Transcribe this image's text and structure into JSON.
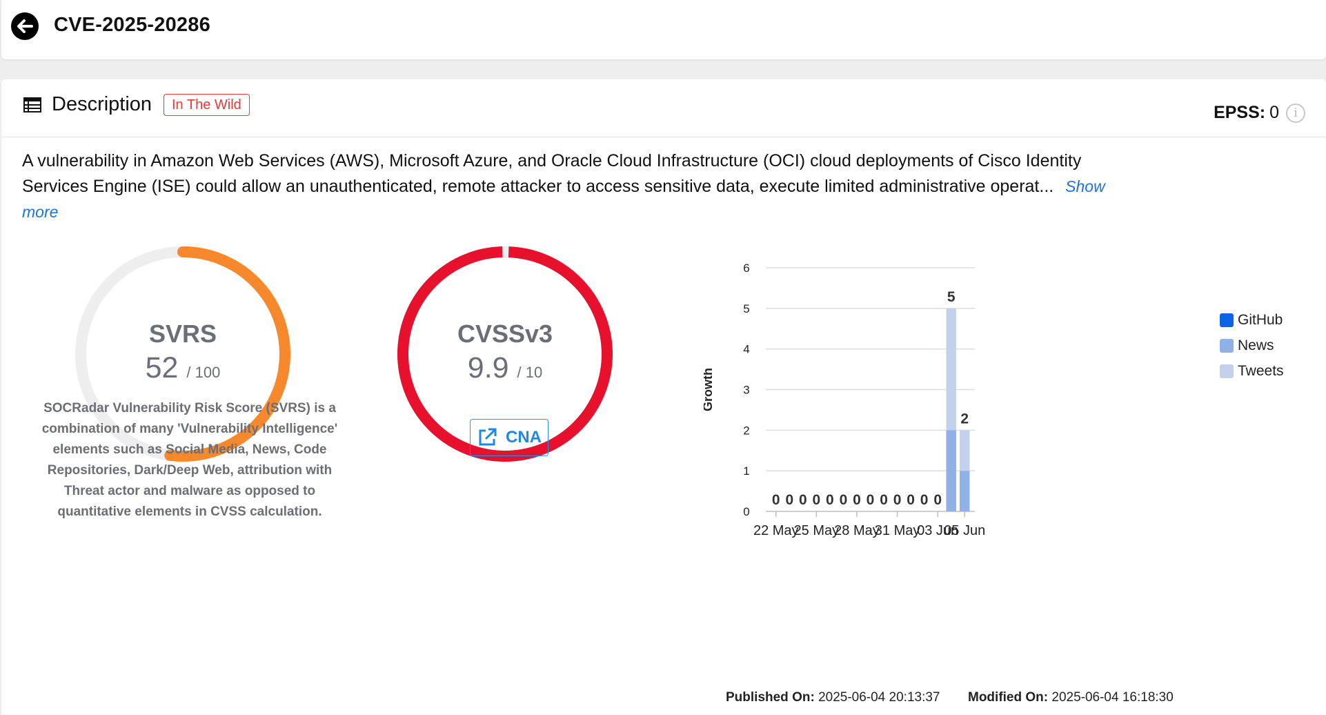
{
  "header": {
    "title": "CVE-2025-20286"
  },
  "description": {
    "title": "Description",
    "badge": "In The Wild",
    "epss_label": "EPSS:",
    "epss_value": "0",
    "text": "A vulnerability in Amazon Web Services (AWS), Microsoft Azure, and Oracle Cloud Infrastructure (OCI) cloud deployments of Cisco Identity Services Engine (ISE) could allow an unauthenticated, remote attacker to access sensitive data, execute limited administrative operat...",
    "show_more": "Show more"
  },
  "scores": {
    "svrs": {
      "label": "SVRS",
      "value": "52",
      "max": "/ 100",
      "fraction": 0.52,
      "color": "#f7892c"
    },
    "cvss": {
      "label": "CVSSv3",
      "value": "9.9",
      "max": "/ 10",
      "fraction": 0.99,
      "color": "#e8112d"
    },
    "track_color": "#eeeeee",
    "svrs_note": "SOCRadar Vulnerability Risk Score (SVRS) is a combination of many 'Vulnerability Intelligence' elements such as Social Media, News, Code Repositories, Dark/Deep Web, attribution with Threat actor and malware as opposed to quantitative elements in CVSS calculation.",
    "cna_label": "CNA"
  },
  "chart_data": {
    "type": "bar",
    "stacked": true,
    "ylabel": "Growth",
    "ylim": [
      0,
      6
    ],
    "yticks": [
      0,
      1,
      2,
      3,
      4,
      5,
      6
    ],
    "categories": [
      "22 May",
      "23 May",
      "24 May",
      "25 May",
      "26 May",
      "27 May",
      "28 May",
      "29 May",
      "30 May",
      "31 May",
      "01 Jun",
      "02 Jun",
      "03 Jun",
      "04 Jun",
      "05 Jun"
    ],
    "xtick_labels": [
      "22 May",
      "25 May",
      "28 May",
      "31 May",
      "03 Jun",
      "05 Jun"
    ],
    "series": [
      {
        "name": "GitHub",
        "color": "#0b63e5",
        "values": [
          0,
          0,
          0,
          0,
          0,
          0,
          0,
          0,
          0,
          0,
          0,
          0,
          0,
          0,
          0
        ]
      },
      {
        "name": "News",
        "color": "#8fb1e6",
        "values": [
          0,
          0,
          0,
          0,
          0,
          0,
          0,
          0,
          0,
          0,
          0,
          0,
          0,
          2,
          1
        ]
      },
      {
        "name": "Tweets",
        "color": "#c2d2ec",
        "values": [
          0,
          0,
          0,
          0,
          0,
          0,
          0,
          0,
          0,
          0,
          0,
          0,
          0,
          3,
          1
        ]
      }
    ],
    "totals": [
      0,
      0,
      0,
      0,
      0,
      0,
      0,
      0,
      0,
      0,
      0,
      0,
      0,
      5,
      2
    ],
    "legend_position": "right",
    "grid": true
  },
  "meta": {
    "published_label": "Published On:",
    "published_value": "2025-06-04 20:13:37",
    "modified_label": "Modified On:",
    "modified_value": "2025-06-04 16:18:30"
  }
}
